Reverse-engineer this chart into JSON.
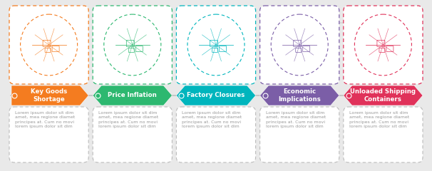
{
  "bg_color": "#e9e9e9",
  "steps": [
    {
      "title": "Key Goods\nShortage",
      "color": "#f47c20",
      "text": "Lorem ipsum dolor sit dim\namet, mea regione diamet\nprincipes at. Cum no movi\nlorem ipsum dolor sit dim"
    },
    {
      "title": "Price Inflation",
      "color": "#2db870",
      "text": "Lorem ipsum dolor sit dim\namet, mea regione diamet\nprincipes at. Cum no movi\nlorem ipsum dolor sit dim"
    },
    {
      "title": "Factory Closures",
      "color": "#00b5bd",
      "text": "Lorem ipsum dolor sit dim\namet, mea regione diamet\nprincipes at. Cum no movi\nlorem ipsum dolor sit dim"
    },
    {
      "title": "Economic\nImplications",
      "color": "#7b5ea7",
      "text": "Lorem ipsum dolor sit dim\namet, mea regione diamet\nprincipes at. Cum no movi\nlorem ipsum dolor sit dim"
    },
    {
      "title": "Unloaded Shipping\nContainers",
      "color": "#e0325a",
      "text": "Lorem ipsum dolor sit dim\namet, mea regione diamet\nprincipes at. Cum no movi\nlorem ipsum dolor sit dim"
    }
  ],
  "font_size_title": 6.2,
  "font_size_text": 4.5
}
